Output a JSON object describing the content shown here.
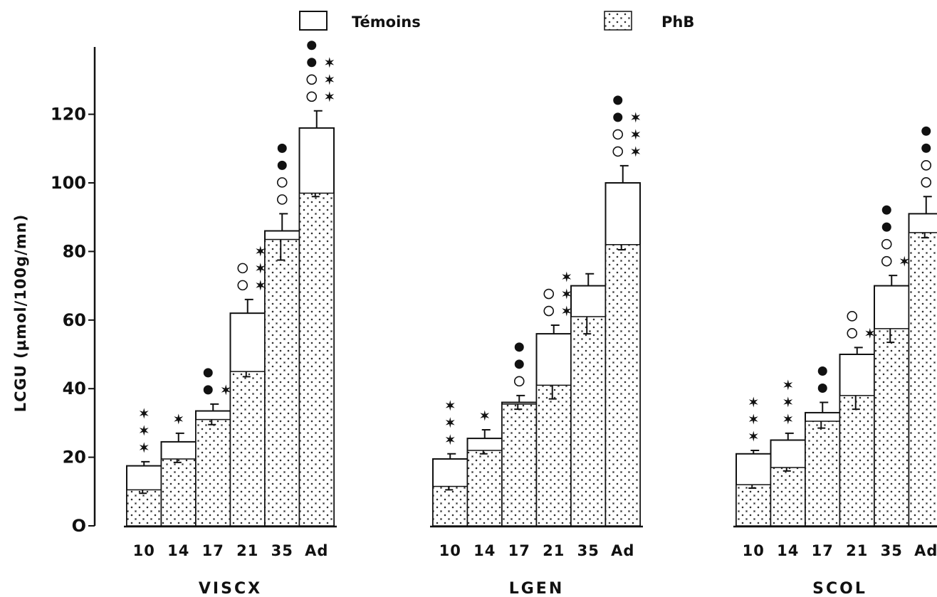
{
  "chart_data": {
    "type": "bar",
    "ylabel": "LCGU (µmol/100g/mn)",
    "ylim": [
      0,
      140
    ],
    "yticks": [
      0,
      20,
      40,
      60,
      80,
      100,
      120
    ],
    "ytick_labels": [
      "O",
      "20",
      "40",
      "60",
      "80",
      "100",
      "120"
    ],
    "categories": [
      "10",
      "14",
      "17",
      "21",
      "35",
      "Ad"
    ],
    "legend": {
      "placement": "top",
      "entries": [
        {
          "name": "Témoins",
          "style": "open"
        },
        {
          "name": "PhB",
          "style": "dotted"
        }
      ]
    },
    "groups": [
      {
        "name": "VISCX",
        "series": [
          {
            "name": "Témoins",
            "values": [
              17.5,
              24.5,
              33.5,
              62,
              86,
              116
            ],
            "errors": [
              1.2,
              2.5,
              2,
              4,
              5,
              5
            ]
          },
          {
            "name": "PhB",
            "values": [
              10.5,
              19.5,
              31,
              45,
              83.5,
              97
            ],
            "errors": [
              1,
              1,
              1.5,
              1.5,
              6,
              1
            ]
          }
        ],
        "annotations": [
          {
            "category": "10",
            "filled": 0,
            "open": 0,
            "stars": 3
          },
          {
            "category": "14",
            "filled": 0,
            "open": 0,
            "stars": 1
          },
          {
            "category": "17",
            "filled": 2,
            "open": 0,
            "stars": 1
          },
          {
            "category": "21",
            "filled": 0,
            "open": 2,
            "stars": 3
          },
          {
            "category": "35",
            "filled": 2,
            "open": 2,
            "stars": 0
          },
          {
            "category": "Ad",
            "filled": 2,
            "open": 2,
            "stars": 3
          }
        ]
      },
      {
        "name": "LGEN",
        "series": [
          {
            "name": "Témoins",
            "values": [
              19.5,
              25.5,
              36,
              56,
              70,
              100
            ],
            "errors": [
              1.5,
              2.5,
              2,
              2.5,
              3.5,
              5
            ]
          },
          {
            "name": "PhB",
            "values": [
              11.5,
              22,
              35.5,
              41,
              61,
              82
            ],
            "errors": [
              1,
              1,
              1.5,
              4,
              5,
              1.5
            ]
          }
        ],
        "annotations": [
          {
            "category": "10",
            "filled": 0,
            "open": 0,
            "stars": 3
          },
          {
            "category": "14",
            "filled": 0,
            "open": 0,
            "stars": 1
          },
          {
            "category": "17",
            "filled": 2,
            "open": 1,
            "stars": 0
          },
          {
            "category": "21",
            "filled": 0,
            "open": 2,
            "stars": 3
          },
          {
            "category": "35",
            "filled": 0,
            "open": 0,
            "stars": 0
          },
          {
            "category": "Ad",
            "filled": 2,
            "open": 2,
            "stars": 3
          }
        ]
      },
      {
        "name": "SCOL",
        "series": [
          {
            "name": "Témoins",
            "values": [
              21,
              25,
              33,
              50,
              70,
              91
            ],
            "errors": [
              1,
              2,
              3,
              2,
              3,
              5
            ]
          },
          {
            "name": "PhB",
            "values": [
              12,
              17,
              30.5,
              38,
              57.5,
              85.5
            ],
            "errors": [
              1,
              1,
              2,
              4,
              4,
              1.5
            ]
          }
        ],
        "annotations": [
          {
            "category": "10",
            "filled": 0,
            "open": 0,
            "stars": 3
          },
          {
            "category": "14",
            "filled": 0,
            "open": 0,
            "stars": 3
          },
          {
            "category": "17",
            "filled": 2,
            "open": 0,
            "stars": 0
          },
          {
            "category": "21",
            "filled": 0,
            "open": 2,
            "stars": 1
          },
          {
            "category": "35",
            "filled": 2,
            "open": 2,
            "stars": 1
          },
          {
            "category": "Ad",
            "filled": 2,
            "open": 2,
            "stars": 0
          }
        ]
      }
    ]
  }
}
